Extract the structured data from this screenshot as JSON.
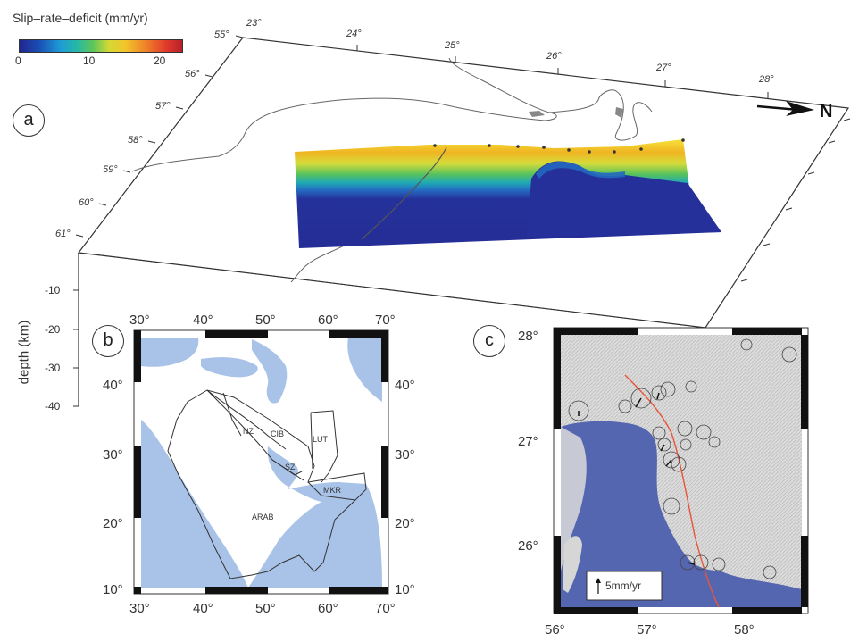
{
  "panel_a": {
    "label": "a",
    "colorbar": {
      "title": "Slip–rate–deficit (mm/yr)",
      "ticks": [
        "0",
        "10",
        "20"
      ],
      "colors": [
        "#21268f",
        "#1e9bd6",
        "#5cc65a",
        "#f2c52a",
        "#e23a2d"
      ]
    },
    "lon_ticks": [
      "23°",
      "24°",
      "25°",
      "26°",
      "27°",
      "28°"
    ],
    "lat_ticks": [
      "55°",
      "56°",
      "57°",
      "58°",
      "59°",
      "60°",
      "61°"
    ],
    "north_label": "N",
    "depth_axis": {
      "title": "depth (km)",
      "ticks": [
        "-10",
        "-20",
        "-30",
        "-40"
      ]
    }
  },
  "panel_b": {
    "label": "b",
    "top_lon_ticks": [
      "30°",
      "40°",
      "50°",
      "60°",
      "70°"
    ],
    "bottom_lon_ticks": [
      "30°",
      "40°",
      "50°",
      "60°",
      "70°"
    ],
    "left_lat_ticks": [
      "40°",
      "30°",
      "20°",
      "10°"
    ],
    "right_lat_ticks": [
      "40°",
      "30°",
      "20°",
      "10°"
    ],
    "regions": [
      "NZ",
      "CIB",
      "LUT",
      "SZ",
      "MKR",
      "ARAB"
    ],
    "water_color": "#a9c3e8"
  },
  "panel_c": {
    "label": "c",
    "lat_ticks": [
      "28°",
      "27°",
      "26°"
    ],
    "lon_ticks": [
      "56°",
      "57°",
      "58°"
    ],
    "scale_label": "5mm/yr",
    "sea_color": "#5566b0",
    "fault_color": "#e8553a"
  }
}
